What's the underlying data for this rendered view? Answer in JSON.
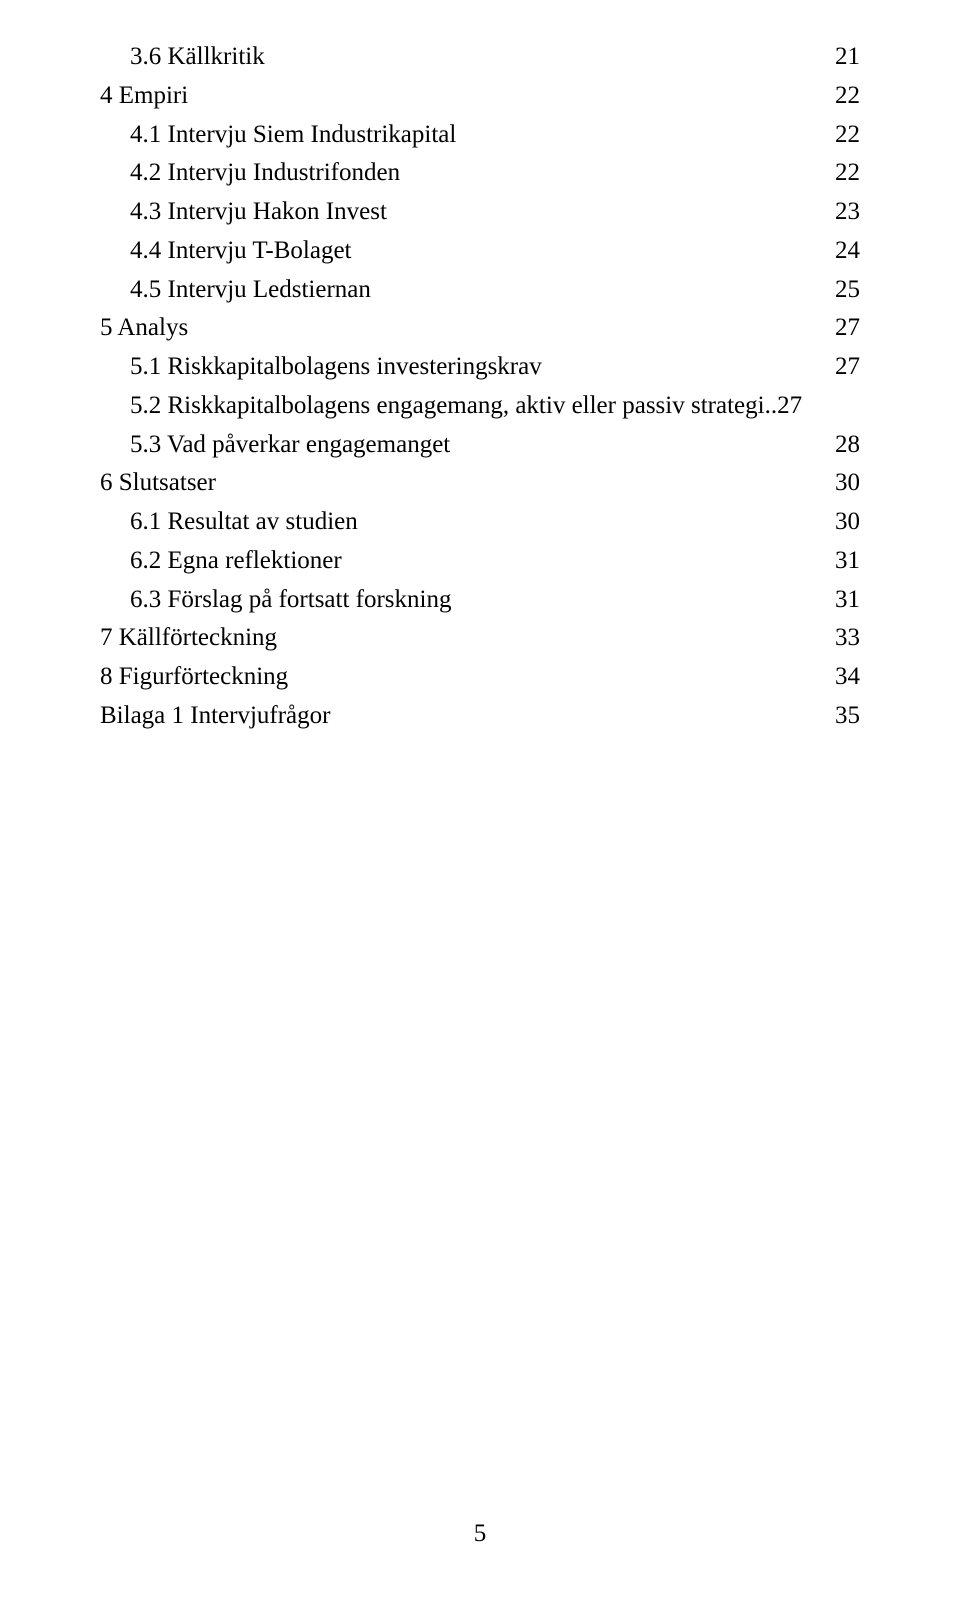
{
  "toc": [
    {
      "indent": 1,
      "label": "3.6 Källkritik",
      "page": "21"
    },
    {
      "indent": 0,
      "label": "4 Empiri",
      "page": "22"
    },
    {
      "indent": 1,
      "label": "4.1 Intervju Siem Industrikapital",
      "page": "22"
    },
    {
      "indent": 1,
      "label": "4.2 Intervju Industrifonden",
      "page": "22"
    },
    {
      "indent": 1,
      "label": "4.3 Intervju Hakon Invest",
      "page": "23"
    },
    {
      "indent": 1,
      "label": "4.4 Intervju T-Bolaget",
      "page": "24"
    },
    {
      "indent": 1,
      "label": "4.5 Intervju Ledstiernan",
      "page": "25"
    },
    {
      "indent": 0,
      "label": "5 Analys",
      "page": "27"
    },
    {
      "indent": 1,
      "label": "5.1 Riskkapitalbolagens investeringskrav",
      "page": "27"
    },
    {
      "indent": 1,
      "label": "5.2 Riskkapitalbolagens engagemang, aktiv eller passiv strategi",
      "page": "27",
      "tight": true
    },
    {
      "indent": 1,
      "label": "5.3 Vad påverkar engagemanget",
      "page": "28"
    },
    {
      "indent": 0,
      "label": "6 Slutsatser",
      "page": "30"
    },
    {
      "indent": 1,
      "label": "6.1 Resultat av studien",
      "page": "30"
    },
    {
      "indent": 1,
      "label": "6.2 Egna reflektioner",
      "page": "31"
    },
    {
      "indent": 1,
      "label": "6.3 Förslag på fortsatt forskning",
      "page": "31"
    },
    {
      "indent": 0,
      "label": "7 Källförteckning",
      "page": "33"
    },
    {
      "indent": 0,
      "label": "8 Figurförteckning",
      "page": "34"
    },
    {
      "indent": 0,
      "label": "Bilaga 1 Intervjufrågor",
      "page": "35"
    }
  ],
  "page_number": "5",
  "style": {
    "font_family": "Times New Roman",
    "font_size_pt": 12,
    "text_color": "#000000",
    "background_color": "#ffffff"
  }
}
